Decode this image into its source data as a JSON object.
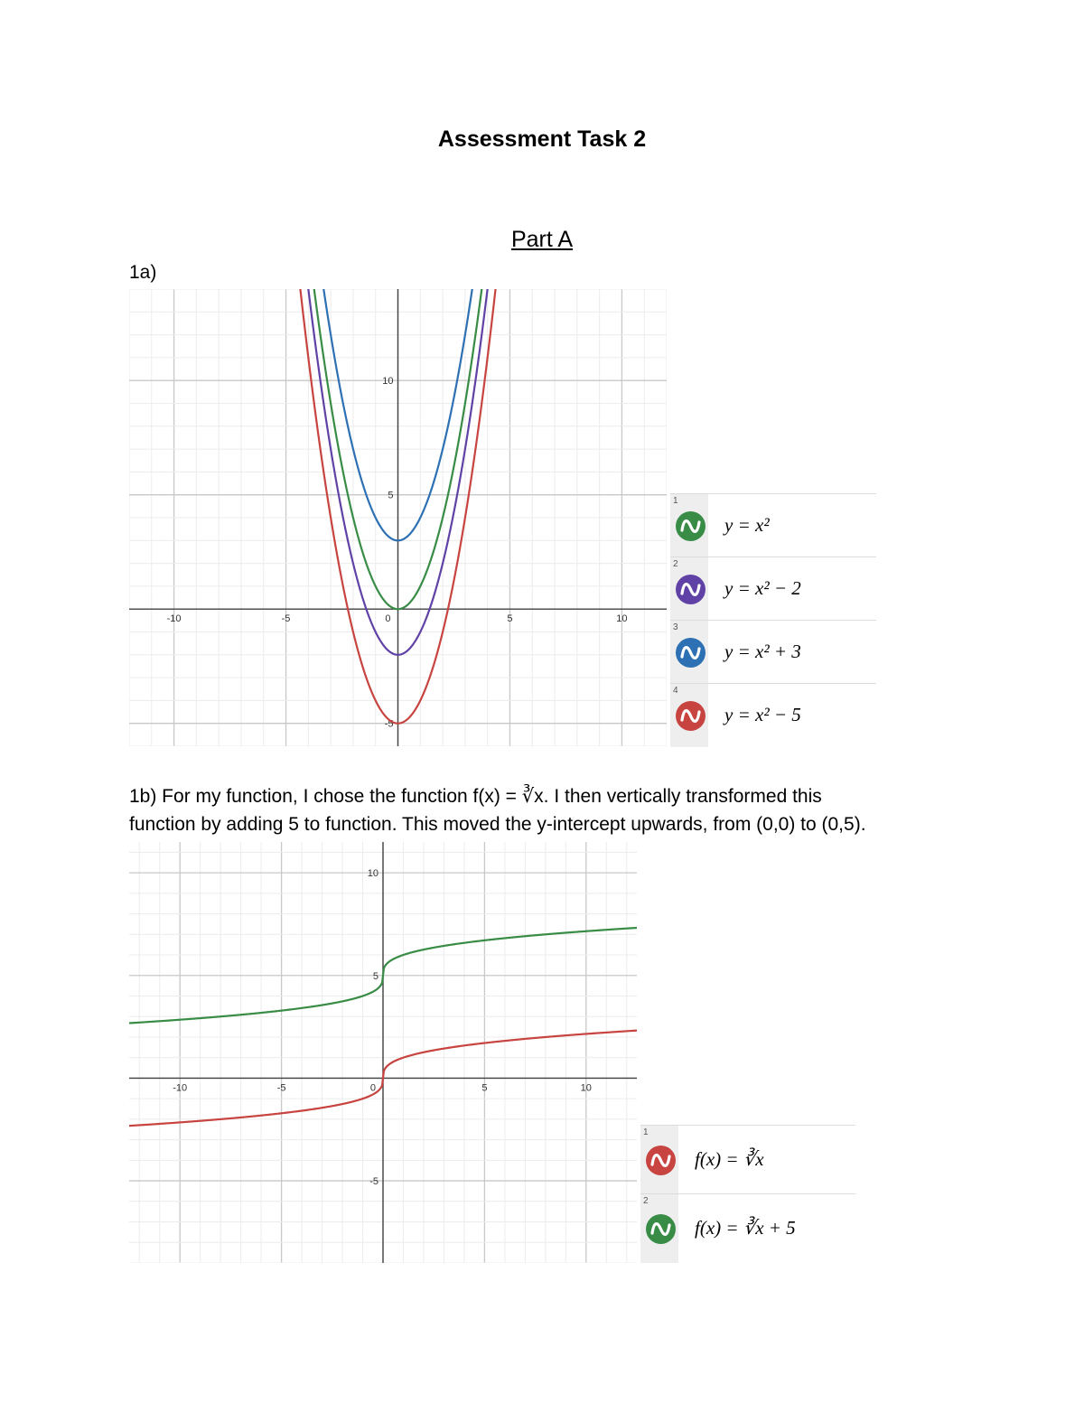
{
  "document": {
    "title": "Assessment Task 2",
    "section": "Part A",
    "q1a_label": "1a)",
    "q1b_line1": "1b) For my function, I chose the function f(x) = ∛x. I then vertically transformed this",
    "q1b_line2": "function by adding 5 to function. This moved the y-intercept upwards, from (0,0) to (0,5)."
  },
  "graph1": {
    "tick_labels": [
      "-10",
      "-5",
      "0",
      "5",
      "10",
      "10",
      "5",
      "-5"
    ],
    "legend": [
      {
        "num": "1",
        "equation": "y = x²",
        "color": "#388c46",
        "icon": "wave-icon"
      },
      {
        "num": "2",
        "equation": "y = x² − 2",
        "color": "#6042a6",
        "icon": "wave-icon"
      },
      {
        "num": "3",
        "equation": "y = x² + 3",
        "color": "#2d70b3",
        "icon": "wave-icon"
      },
      {
        "num": "4",
        "equation": "y = x² − 5",
        "color": "#c74440",
        "icon": "wave-icon"
      }
    ]
  },
  "graph2": {
    "tick_labels": [
      "-10",
      "-5",
      "0",
      "5",
      "10",
      "10",
      "5",
      "-5"
    ],
    "legend": [
      {
        "num": "1",
        "equation": "f(x) = ∛x",
        "color": "#c74440",
        "icon": "wave-icon"
      },
      {
        "num": "2",
        "equation": "f(x) = ∛x + 5",
        "color": "#388c46",
        "icon": "wave-icon"
      }
    ]
  },
  "chart_data": [
    {
      "type": "line",
      "title": "",
      "xlabel": "",
      "ylabel": "",
      "xlim": [
        -12,
        12
      ],
      "ylim": [
        -6,
        14
      ],
      "grid": true,
      "series": [
        {
          "name": "y = x²",
          "formula": "x^2",
          "color": "#388c46",
          "vertex": [
            0,
            0
          ]
        },
        {
          "name": "y = x² − 2",
          "formula": "x^2-2",
          "color": "#6042a6",
          "vertex": [
            0,
            -2
          ]
        },
        {
          "name": "y = x² + 3",
          "formula": "x^2+3",
          "color": "#2d70b3",
          "vertex": [
            0,
            3
          ]
        },
        {
          "name": "y = x² − 5",
          "formula": "x^2-5",
          "color": "#c74440",
          "vertex": [
            0,
            -5
          ]
        }
      ],
      "legend": "right"
    },
    {
      "type": "line",
      "title": "",
      "xlabel": "",
      "ylabel": "",
      "xlim": [
        -12.5,
        12.5
      ],
      "ylim": [
        -9,
        11.5
      ],
      "grid": true,
      "series": [
        {
          "name": "f(x) = ∛x",
          "formula": "cbrt(x)",
          "color": "#c74440",
          "y_intercept": 0
        },
        {
          "name": "f(x) = ∛x + 5",
          "formula": "cbrt(x)+5",
          "color": "#388c46",
          "y_intercept": 5
        }
      ],
      "legend": "right"
    }
  ]
}
